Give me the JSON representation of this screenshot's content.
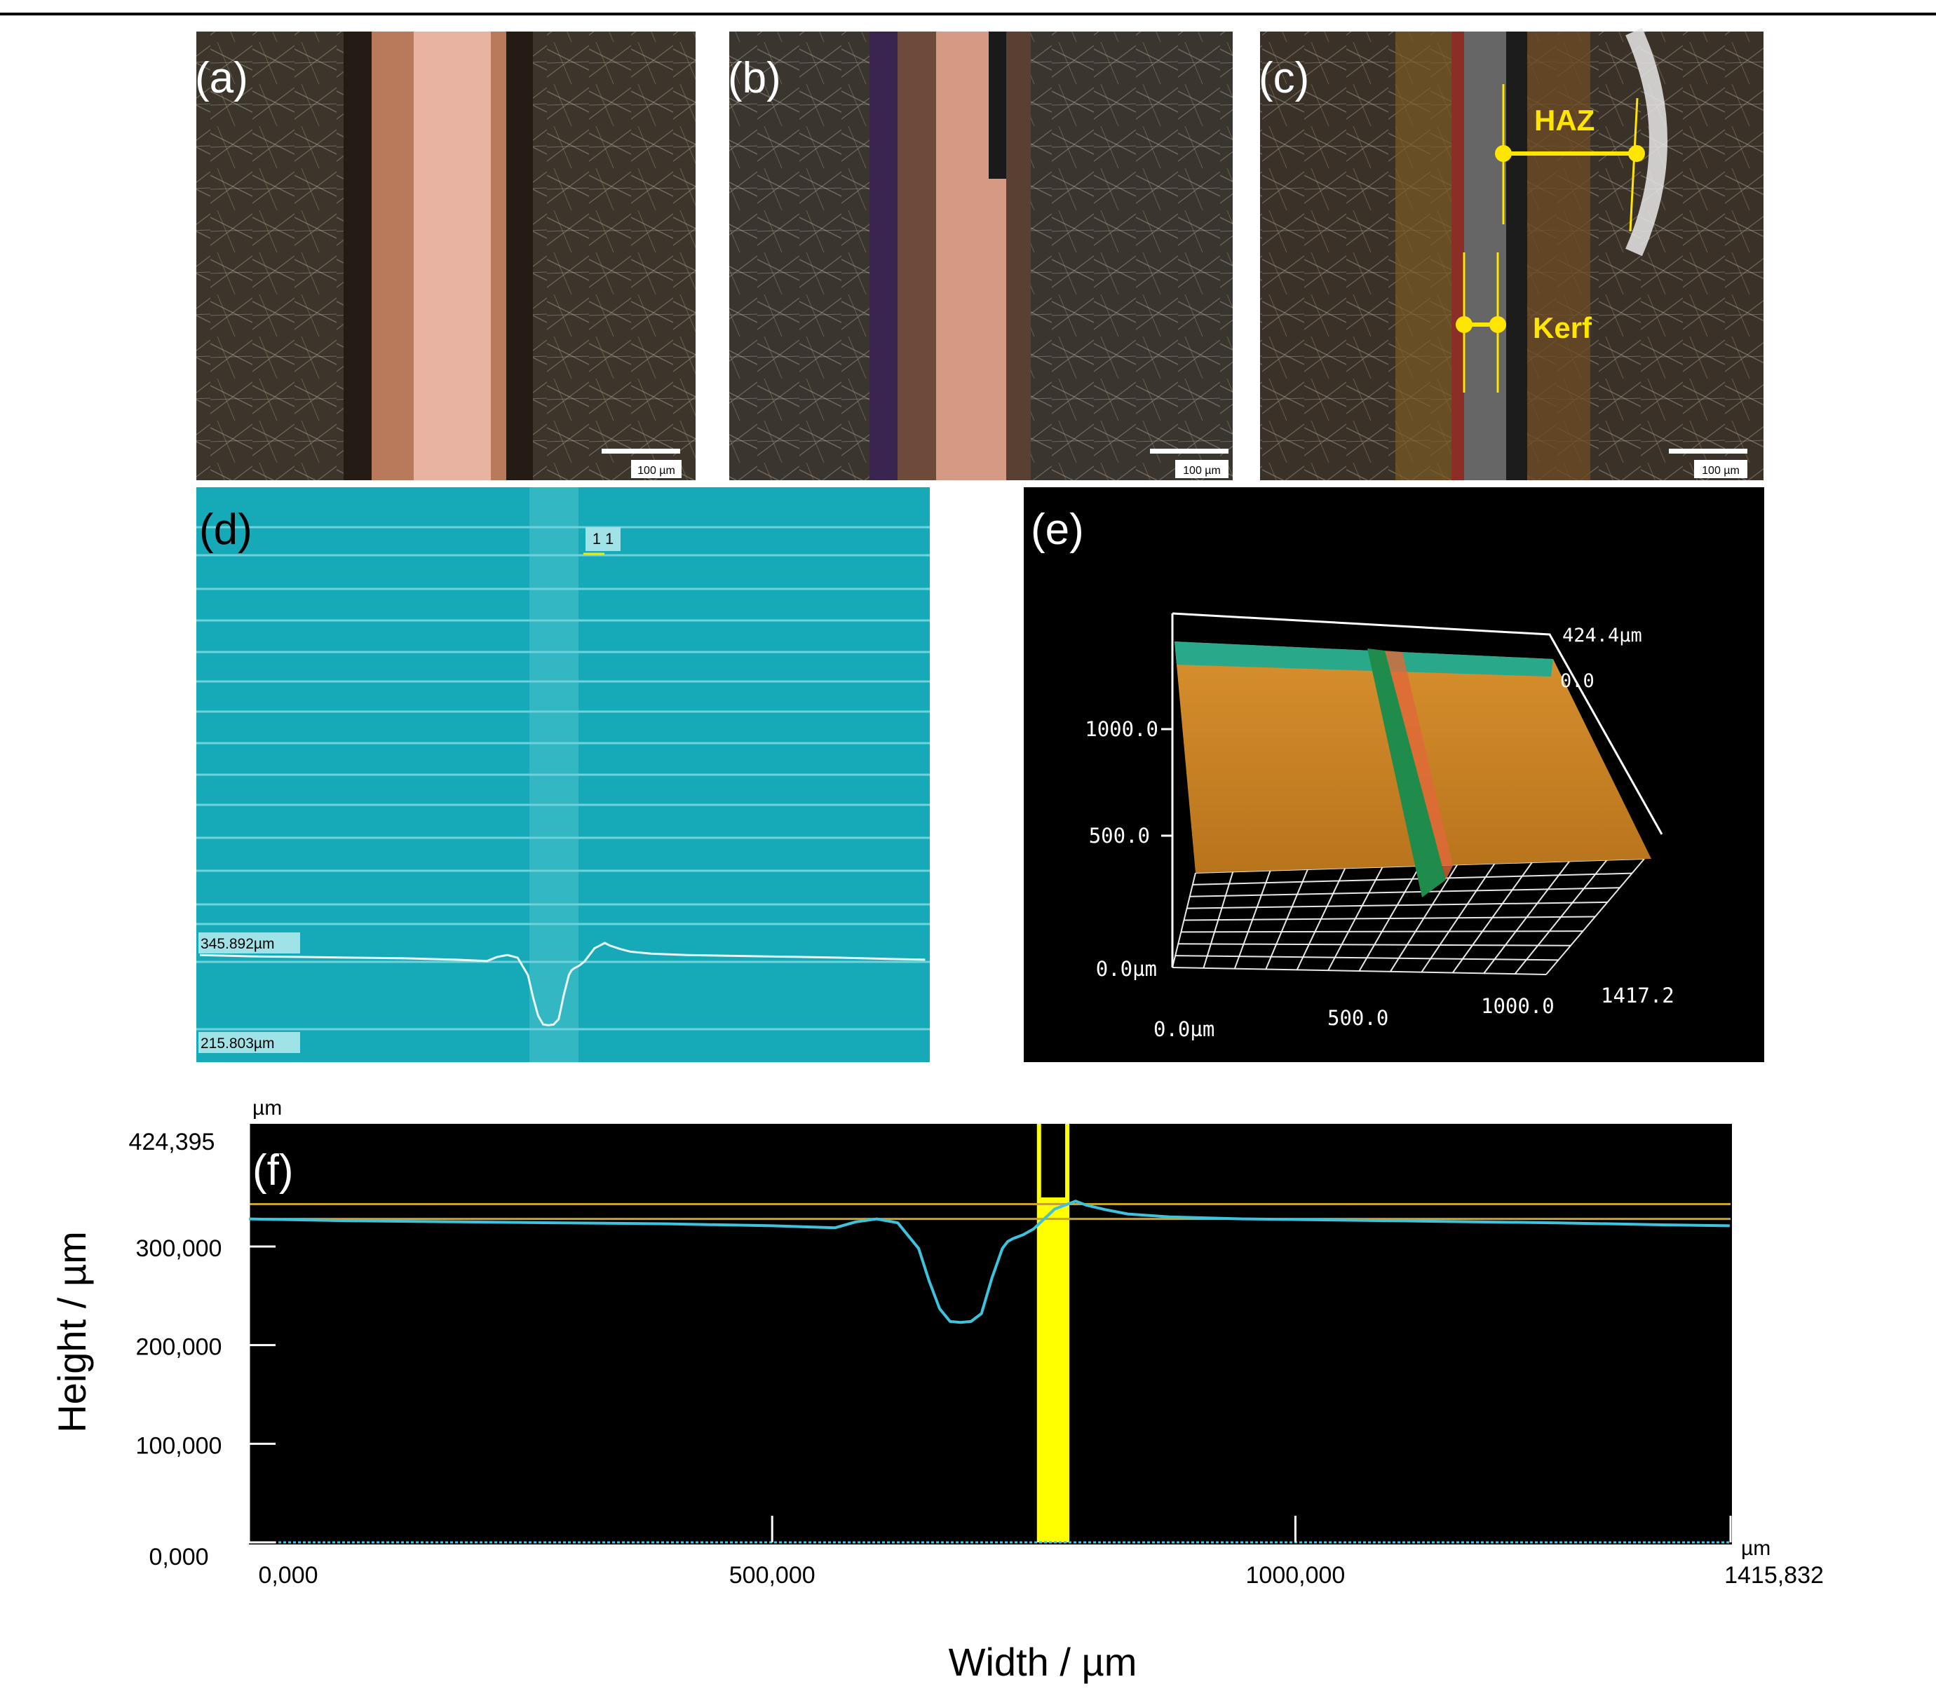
{
  "panels": {
    "a": {
      "label": "(a)",
      "scale_bar": "100 µm"
    },
    "b": {
      "label": "(b)",
      "scale_bar": "100 µm"
    },
    "c": {
      "label": "(c)",
      "scale_bar": "100 µm",
      "haz_label": "HAZ",
      "kerf_label": "Kerf"
    },
    "d": {
      "label": "(d)",
      "marker": "1 1",
      "upper_value": "345.892µm",
      "lower_value": "215.803µm"
    },
    "e": {
      "label": "(e)",
      "z_top": "424.4µm",
      "z_zero": "0.0",
      "y_ticks": [
        "1000.0",
        "500.0",
        "0.0µm"
      ],
      "x_ticks": [
        "0.0µm",
        "500.0",
        "1000.0",
        "1417.2"
      ]
    },
    "f": {
      "label": "(f)"
    }
  },
  "colors": {
    "profile": "#3ec3de",
    "cursor": "#ffff00",
    "reference": "#c9a227",
    "panel_d_bg": "#16a9b7",
    "annotation": "#ffe600"
  },
  "chart_data": {
    "type": "line",
    "title": "",
    "xlabel": "Width / µm",
    "ylabel": "Height / µm",
    "x_unit": "µm",
    "y_unit": "µm",
    "xlim": [
      0,
      1415.832
    ],
    "ylim": [
      0,
      424.395
    ],
    "x_ticks": [
      "0,000",
      "500,000",
      "1000,000"
    ],
    "x_max_label": "1415,832",
    "y_ticks": [
      "0,000",
      "100,000",
      "200,000",
      "300,000"
    ],
    "y_max_label": "424,395",
    "grid": false,
    "legend": "none",
    "cursor_band": [
      753,
      784
    ],
    "reference_lines": [
      343,
      328
    ],
    "series": [
      {
        "x": [
          0,
          50,
          100,
          200,
          300,
          400,
          500,
          560,
          580,
          600,
          620,
          640,
          650,
          660,
          670,
          680,
          690,
          700,
          710,
          720,
          725,
          730,
          740,
          750,
          760,
          770,
          780,
          790,
          800,
          820,
          840,
          880,
          950,
          1100,
          1250,
          1350,
          1415
        ],
        "y": [
          328,
          327,
          326,
          325,
          324,
          323,
          321,
          319,
          325,
          328,
          324,
          298,
          265,
          237,
          224,
          223,
          224,
          232,
          268,
          298,
          305,
          308,
          312,
          318,
          328,
          338,
          342,
          346,
          342,
          337,
          333,
          330,
          328,
          326,
          324,
          322,
          321
        ]
      }
    ]
  }
}
